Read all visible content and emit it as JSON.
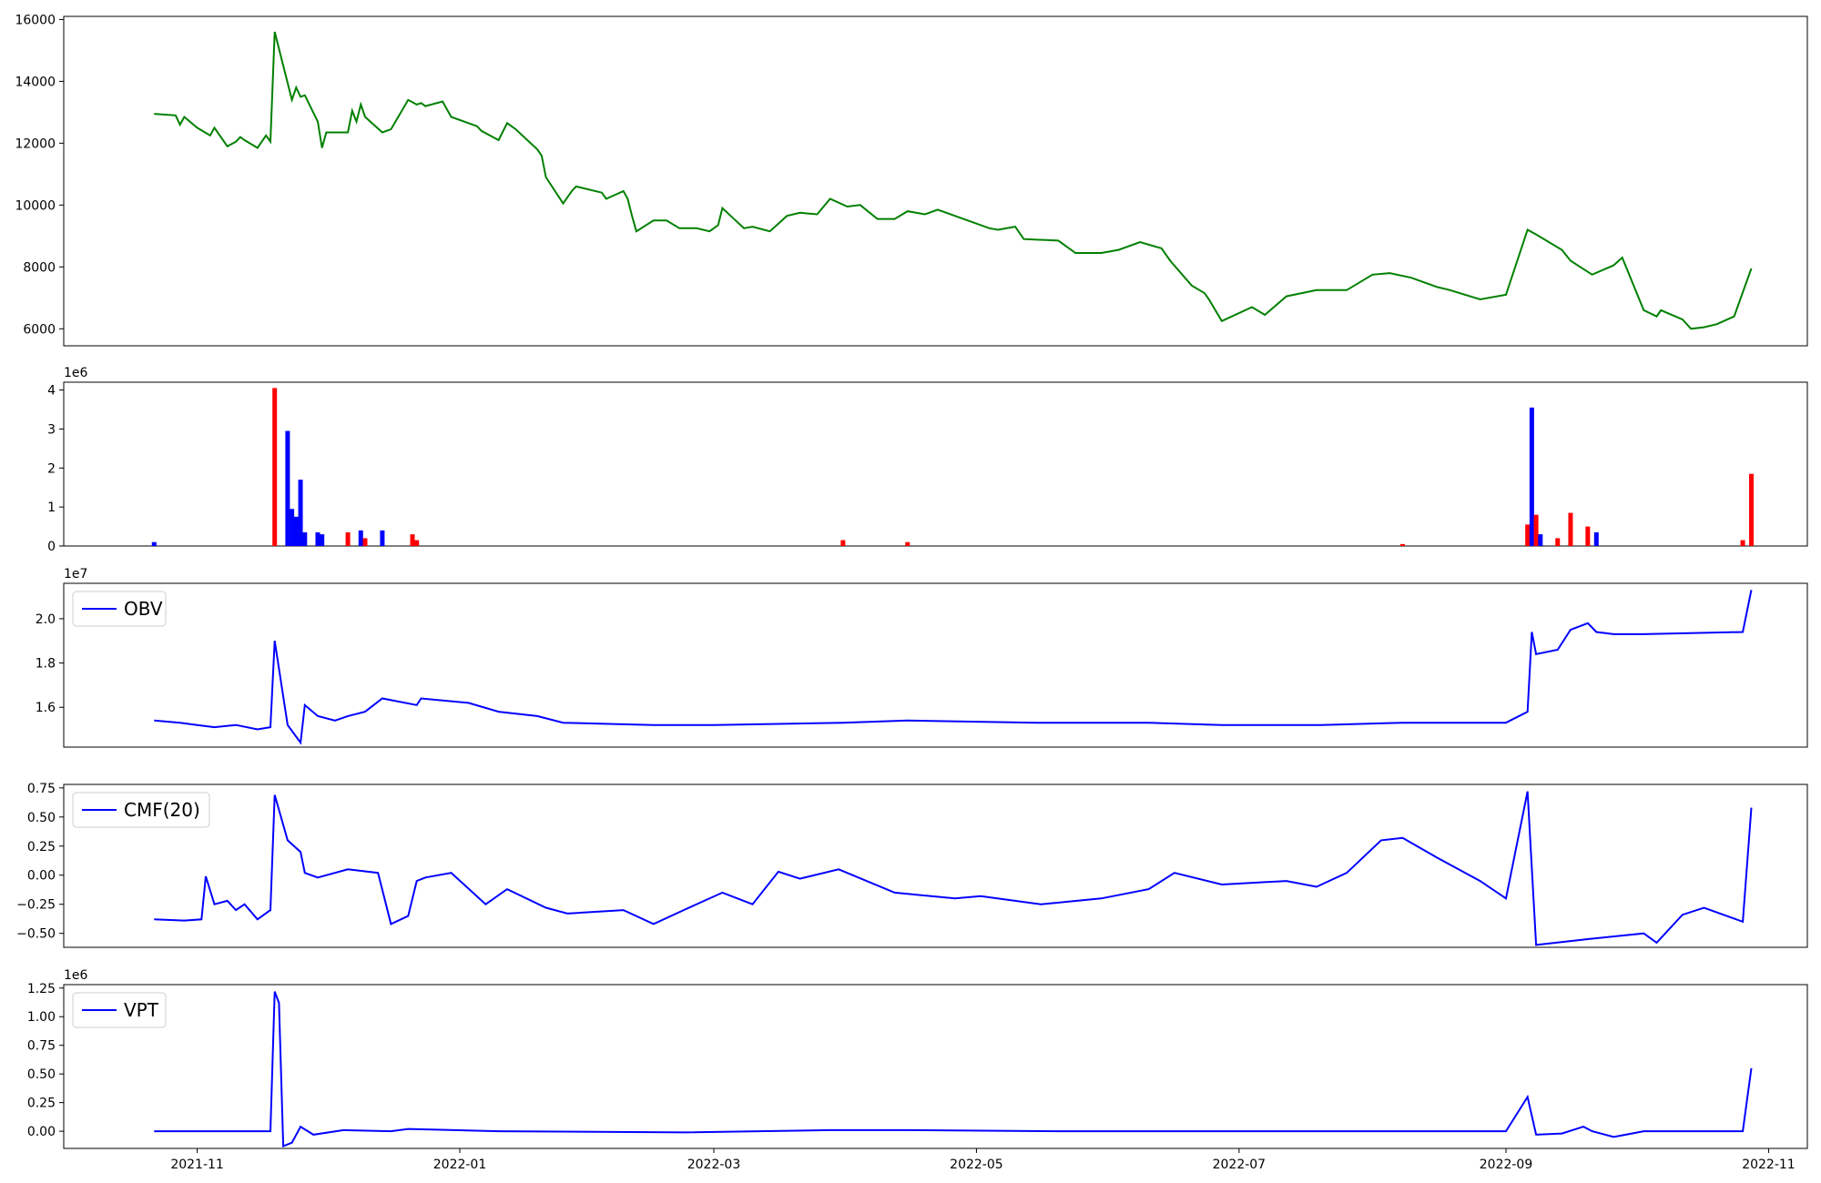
{
  "colors": {
    "price": "#008000",
    "up": "#ff0000",
    "down": "#0000ff",
    "indicator": "#0000ff"
  },
  "x_axis": {
    "range": [
      "2021-10-01",
      "2022-11-10"
    ],
    "ticks": [
      "2021-11",
      "2022-01",
      "2022-03",
      "2022-05",
      "2022-07",
      "2022-09",
      "2022-11"
    ]
  },
  "chart_data": [
    {
      "type": "line",
      "series": [
        {
          "values_x": [
            "2021-10-22",
            "2021-10-27",
            "2021-10-28",
            "2021-10-29",
            "2021-11-01",
            "2021-11-04",
            "2021-11-05",
            "2021-11-08",
            "2021-11-10",
            "2021-11-11",
            "2021-11-12",
            "2021-11-15",
            "2021-11-16",
            "2021-11-17",
            "2021-11-18",
            "2021-11-19",
            "2021-11-22",
            "2021-11-23",
            "2021-11-24",
            "2021-11-25",
            "2021-11-26",
            "2021-11-29",
            "2021-11-30",
            "2021-12-01",
            "2021-12-06",
            "2021-12-07",
            "2021-12-08",
            "2021-12-09",
            "2021-12-10",
            "2021-12-14",
            "2021-12-16",
            "2021-12-20",
            "2021-12-22",
            "2021-12-23",
            "2021-12-24",
            "2021-12-28",
            "2021-12-29",
            "2021-12-30",
            "2022-01-03",
            "2022-01-05",
            "2022-01-06",
            "2022-01-10",
            "2022-01-12",
            "2022-01-14",
            "2022-01-19",
            "2022-01-20",
            "2022-01-21",
            "2022-01-25",
            "2022-01-26",
            "2022-01-27",
            "2022-01-28",
            "2022-02-03",
            "2022-02-04",
            "2022-02-08",
            "2022-02-09",
            "2022-02-10",
            "2022-02-11",
            "2022-02-15",
            "2022-02-18",
            "2022-02-21",
            "2022-02-25",
            "2022-02-28",
            "2022-03-02",
            "2022-03-03",
            "2022-03-08",
            "2022-03-10",
            "2022-03-14",
            "2022-03-18",
            "2022-03-21",
            "2022-03-25",
            "2022-03-28",
            "2022-04-01",
            "2022-04-04",
            "2022-04-08",
            "2022-04-12",
            "2022-04-15",
            "2022-04-19",
            "2022-04-22",
            "2022-04-29",
            "2022-05-04",
            "2022-05-06",
            "2022-05-10",
            "2022-05-12",
            "2022-05-20",
            "2022-05-24",
            "2022-05-30",
            "2022-06-03",
            "2022-06-08",
            "2022-06-13",
            "2022-06-15",
            "2022-06-20",
            "2022-06-23",
            "2022-06-24",
            "2022-06-27",
            "2022-07-04",
            "2022-07-07",
            "2022-07-12",
            "2022-07-19",
            "2022-07-26",
            "2022-08-01",
            "2022-08-05",
            "2022-08-10",
            "2022-08-16",
            "2022-08-19",
            "2022-08-26",
            "2022-09-01",
            "2022-09-06",
            "2022-09-08",
            "2022-09-14",
            "2022-09-16",
            "2022-09-21",
            "2022-09-26",
            "2022-09-28",
            "2022-10-03",
            "2022-10-06",
            "2022-10-07",
            "2022-10-12",
            "2022-10-14",
            "2022-10-17",
            "2022-10-20",
            "2022-10-24",
            "2022-10-28"
          ],
          "values": [
            12950,
            12900,
            12600,
            12850,
            12500,
            12250,
            12500,
            11900,
            12050,
            12200,
            12100,
            11850,
            12050,
            12250,
            12050,
            15600,
            13950,
            13400,
            13800,
            13500,
            13550,
            12700,
            11850,
            12350,
            12350,
            13050,
            12700,
            13250,
            12850,
            12350,
            12450,
            13400,
            13250,
            13300,
            13200,
            13350,
            13100,
            12850,
            12650,
            12550,
            12400,
            12100,
            12650,
            12450,
            11800,
            11600,
            10900,
            10050,
            10250,
            10450,
            10600,
            10400,
            10200,
            10450,
            10200,
            9650,
            9150,
            9500,
            9500,
            9250,
            9250,
            9150,
            9350,
            9900,
            9250,
            9300,
            9150,
            9650,
            9750,
            9700,
            10200,
            9950,
            10000,
            9550,
            9550,
            9800,
            9700,
            9850,
            9500,
            9250,
            9200,
            9300,
            8900,
            8850,
            8450,
            8450,
            8550,
            8800,
            8600,
            8200,
            7400,
            7150,
            6950,
            6250,
            6700,
            6450,
            7050,
            7250,
            7250,
            7750,
            7800,
            7650,
            7350,
            7250,
            6950,
            7100,
            9200,
            9050,
            8550,
            8200,
            7750,
            8050,
            8300,
            6600,
            6400,
            6600,
            6300,
            6000,
            6050,
            6150,
            6400,
            7950
          ]
        }
      ]
    },
    {
      "type": "bar",
      "title_exponent": "1e6",
      "ylim": [
        0,
        4.2
      ],
      "yticks": [
        "0",
        "1",
        "2",
        "3",
        "4"
      ],
      "categories": [
        "2021-10-22",
        "2021-11-19",
        "2021-11-22",
        "2021-11-23",
        "2021-11-24",
        "2021-11-25",
        "2021-11-26",
        "2021-11-29",
        "2021-11-30",
        "2021-12-06",
        "2021-12-09",
        "2021-12-10",
        "2021-12-14",
        "2021-12-21",
        "2021-12-22",
        "2022-03-31",
        "2022-04-15",
        "2022-08-08",
        "2022-09-06",
        "2022-09-07",
        "2022-09-08",
        "2022-09-09",
        "2022-09-13",
        "2022-09-16",
        "2022-09-20",
        "2022-09-22",
        "2022-10-26",
        "2022-10-28"
      ],
      "series": [
        {
          "values": [
            0.1,
            4.05,
            2.95,
            0.95,
            0.75,
            1.7,
            0.35,
            0.35,
            0.3,
            0.35,
            0.4,
            0.2,
            0.4,
            0.3,
            0.15,
            0.15,
            0.1,
            0.05,
            0.55,
            3.55,
            0.8,
            0.3,
            0.2,
            0.85,
            0.5,
            0.35,
            0.15,
            1.85
          ],
          "direction": [
            "down",
            "up",
            "down",
            "down",
            "down",
            "down",
            "down",
            "down",
            "down",
            "up",
            "down",
            "up",
            "down",
            "up",
            "up",
            "up",
            "up",
            "up",
            "up",
            "down",
            "up",
            "down",
            "up",
            "up",
            "up",
            "down",
            "up",
            "up"
          ]
        }
      ]
    },
    {
      "type": "line",
      "title_exponent": "1e7",
      "ylim": [
        1.42,
        2.16
      ],
      "yticks": [
        "1.6",
        "1.8",
        "2.0"
      ],
      "series": [
        {
          "name": "OBV",
          "values_x": [
            "2021-10-22",
            "2021-10-28",
            "2021-11-01",
            "2021-11-05",
            "2021-11-10",
            "2021-11-15",
            "2021-11-18",
            "2021-11-19",
            "2021-11-22",
            "2021-11-25",
            "2021-11-26",
            "2021-11-29",
            "2021-12-03",
            "2021-12-06",
            "2021-12-10",
            "2021-12-14",
            "2021-12-22",
            "2021-12-23",
            "2022-01-03",
            "2022-01-10",
            "2022-01-19",
            "2022-01-25",
            "2022-02-15",
            "2022-03-01",
            "2022-03-31",
            "2022-04-15",
            "2022-05-15",
            "2022-06-10",
            "2022-06-27",
            "2022-07-20",
            "2022-08-08",
            "2022-09-01",
            "2022-09-06",
            "2022-09-07",
            "2022-09-08",
            "2022-09-13",
            "2022-09-16",
            "2022-09-20",
            "2022-09-22",
            "2022-09-26",
            "2022-10-03",
            "2022-10-26",
            "2022-10-28"
          ],
          "values": [
            1.54,
            1.53,
            1.52,
            1.51,
            1.52,
            1.5,
            1.51,
            1.9,
            1.52,
            1.44,
            1.61,
            1.56,
            1.54,
            1.56,
            1.58,
            1.64,
            1.61,
            1.64,
            1.62,
            1.58,
            1.56,
            1.53,
            1.52,
            1.52,
            1.53,
            1.54,
            1.53,
            1.53,
            1.52,
            1.52,
            1.53,
            1.53,
            1.58,
            1.94,
            1.84,
            1.86,
            1.95,
            1.98,
            1.94,
            1.93,
            1.93,
            1.94,
            2.13
          ]
        }
      ]
    },
    {
      "type": "line",
      "ylim": [
        -0.62,
        0.78
      ],
      "yticks": [
        "−0.50",
        "−0.25",
        "0.00",
        "0.25",
        "0.50",
        "0.75"
      ],
      "series": [
        {
          "name": "CMF(20)",
          "values_x": [
            "2021-10-22",
            "2021-10-29",
            "2021-11-02",
            "2021-11-03",
            "2021-11-05",
            "2021-11-08",
            "2021-11-10",
            "2021-11-12",
            "2021-11-15",
            "2021-11-18",
            "2021-11-19",
            "2021-11-22",
            "2021-11-25",
            "2021-11-26",
            "2021-11-29",
            "2021-12-06",
            "2021-12-13",
            "2021-12-16",
            "2021-12-20",
            "2021-12-22",
            "2021-12-24",
            "2021-12-30",
            "2022-01-07",
            "2022-01-12",
            "2022-01-21",
            "2022-01-26",
            "2022-02-08",
            "2022-02-15",
            "2022-02-22",
            "2022-03-03",
            "2022-03-10",
            "2022-03-16",
            "2022-03-21",
            "2022-03-30",
            "2022-04-12",
            "2022-04-26",
            "2022-05-02",
            "2022-05-16",
            "2022-05-30",
            "2022-06-10",
            "2022-06-16",
            "2022-06-27",
            "2022-07-12",
            "2022-07-19",
            "2022-07-26",
            "2022-08-03",
            "2022-08-08",
            "2022-08-16",
            "2022-08-26",
            "2022-09-01",
            "2022-09-06",
            "2022-09-08",
            "2022-09-20",
            "2022-10-03",
            "2022-10-06",
            "2022-10-12",
            "2022-10-17",
            "2022-10-26",
            "2022-10-28"
          ],
          "values": [
            -0.38,
            -0.39,
            -0.38,
            -0.01,
            -0.25,
            -0.22,
            -0.3,
            -0.25,
            -0.38,
            -0.3,
            0.69,
            0.3,
            0.2,
            0.02,
            -0.02,
            0.05,
            0.02,
            -0.42,
            -0.35,
            -0.05,
            -0.02,
            0.02,
            -0.25,
            -0.12,
            -0.28,
            -0.33,
            -0.3,
            -0.42,
            -0.3,
            -0.15,
            -0.25,
            0.03,
            -0.03,
            0.05,
            -0.15,
            -0.2,
            -0.18,
            -0.25,
            -0.2,
            -0.12,
            0.02,
            -0.08,
            -0.05,
            -0.1,
            0.02,
            0.3,
            0.32,
            0.15,
            -0.05,
            -0.2,
            0.72,
            -0.6,
            -0.55,
            -0.5,
            -0.58,
            -0.34,
            -0.28,
            -0.4,
            0.58
          ]
        }
      ]
    },
    {
      "type": "line",
      "title_exponent": "1e6",
      "ylim": [
        -0.15,
        1.28
      ],
      "yticks": [
        "0.00",
        "0.25",
        "0.50",
        "0.75",
        "1.00",
        "1.25"
      ],
      "series": [
        {
          "name": "VPT",
          "values_x": [
            "2021-10-22",
            "2021-11-10",
            "2021-11-18",
            "2021-11-19",
            "2021-11-20",
            "2021-11-21",
            "2021-11-23",
            "2021-11-25",
            "2021-11-28",
            "2021-12-05",
            "2021-12-16",
            "2021-12-20",
            "2022-01-10",
            "2022-02-22",
            "2022-03-28",
            "2022-04-15",
            "2022-05-20",
            "2022-06-20",
            "2022-07-20",
            "2022-08-20",
            "2022-09-01",
            "2022-09-06",
            "2022-09-08",
            "2022-09-14",
            "2022-09-19",
            "2022-09-21",
            "2022-09-26",
            "2022-10-03",
            "2022-10-26",
            "2022-10-28"
          ],
          "values": [
            0.0,
            0.0,
            0.0,
            1.22,
            1.12,
            -0.13,
            -0.1,
            0.04,
            -0.03,
            0.01,
            0.0,
            0.02,
            0.0,
            -0.01,
            0.01,
            0.01,
            0.0,
            0.0,
            0.0,
            0.0,
            0.0,
            0.3,
            -0.03,
            -0.02,
            0.04,
            0.0,
            -0.05,
            0.0,
            0.0,
            0.55
          ]
        }
      ]
    }
  ]
}
